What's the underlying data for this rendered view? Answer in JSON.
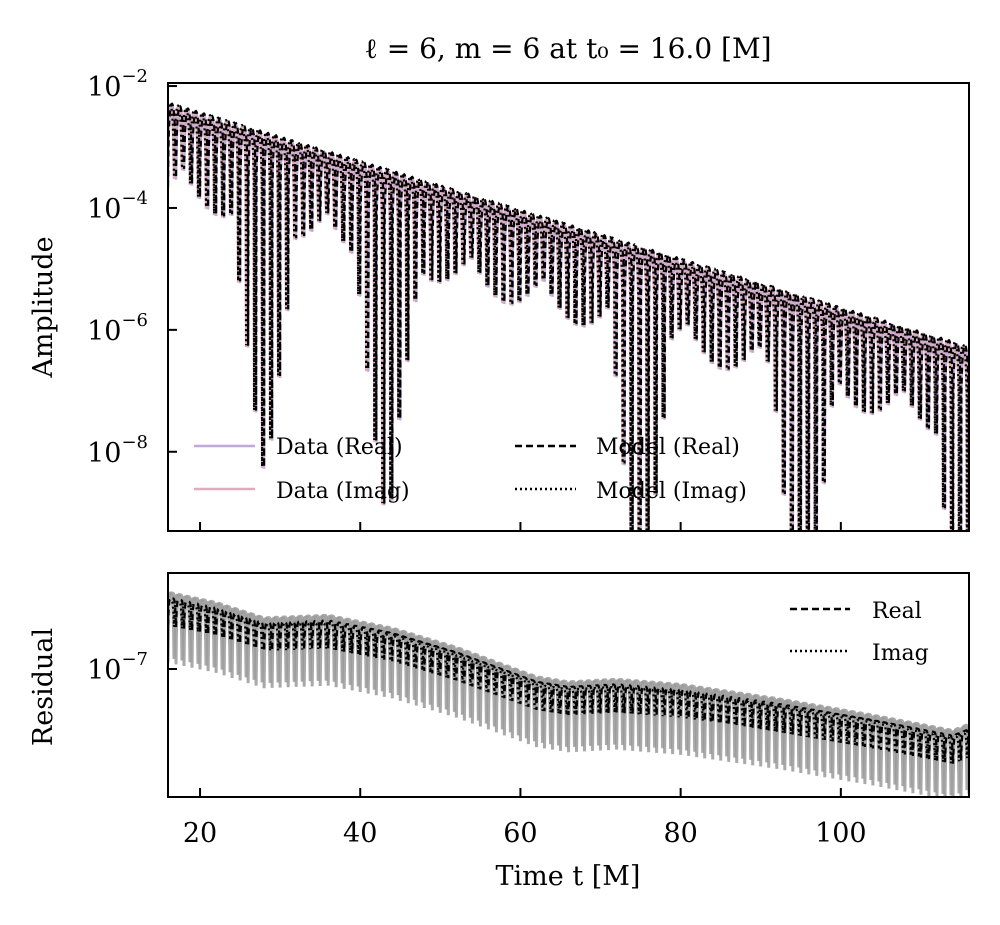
{
  "chart_data": [
    {
      "panel": "top",
      "type": "line",
      "title": "ℓ = 6, m = 6 at t₀ = 16.0 [M]",
      "xlabel": "",
      "ylabel": "Amplitude",
      "yscale": "log",
      "xlim": [
        16,
        116
      ],
      "ylim_log10": [
        -9.3,
        -1.95
      ],
      "yticks": [
        {
          "base": "10",
          "exp": "−2",
          "log10": -2
        },
        {
          "base": "10",
          "exp": "−4",
          "log10": -4
        },
        {
          "base": "10",
          "exp": "−6",
          "log10": -6
        },
        {
          "base": "10",
          "exp": "−8",
          "log10": -8
        }
      ],
      "xticks": [
        20,
        40,
        60,
        80,
        100
      ],
      "envelope": {
        "t_start": 16,
        "log10_amp_start": -2.3,
        "t_end": 116,
        "log10_amp_end": -6.3
      },
      "oscillation_period": 1.0,
      "deep_dips_t": [
        28,
        43.5,
        75,
        95.5,
        116
      ],
      "legend": {
        "location": "lower-left",
        "columns": 2,
        "entries": [
          {
            "label": "Data (Real)",
            "style": "solid",
            "color": "#c0a8dc"
          },
          {
            "label": "Data (Imag)",
            "style": "solid",
            "color": "#dcaebb"
          },
          {
            "label": "Model (Real)",
            "style": "dashed",
            "color": "#000000"
          },
          {
            "label": "Model (Imag)",
            "style": "dotted",
            "color": "#000000"
          }
        ]
      }
    },
    {
      "panel": "bottom",
      "type": "line",
      "xlabel": "Time t [M]",
      "ylabel": "Residual",
      "yscale": "log",
      "xlim": [
        16,
        116
      ],
      "ylim_log10": [
        -8.0,
        -6.25
      ],
      "yticks": [
        {
          "base": "10",
          "exp": "−7",
          "log10": -7
        }
      ],
      "xticks": [
        20,
        40,
        60,
        80,
        100
      ],
      "band_color": "#9a9a9a",
      "trend_points": [
        [
          16,
          -6.42
        ],
        [
          22,
          -6.5
        ],
        [
          28,
          -6.62
        ],
        [
          36,
          -6.6
        ],
        [
          44,
          -6.7
        ],
        [
          52,
          -6.85
        ],
        [
          62,
          -7.08
        ],
        [
          66,
          -7.12
        ],
        [
          72,
          -7.1
        ],
        [
          80,
          -7.14
        ],
        [
          92,
          -7.25
        ],
        [
          104,
          -7.38
        ],
        [
          114,
          -7.5
        ],
        [
          116,
          -7.45
        ]
      ],
      "legend": {
        "location": "top-right",
        "entries": [
          {
            "label": "Real",
            "style": "dashed",
            "color": "#000000"
          },
          {
            "label": "Imag",
            "style": "dotted",
            "color": "#000000"
          }
        ]
      }
    }
  ]
}
